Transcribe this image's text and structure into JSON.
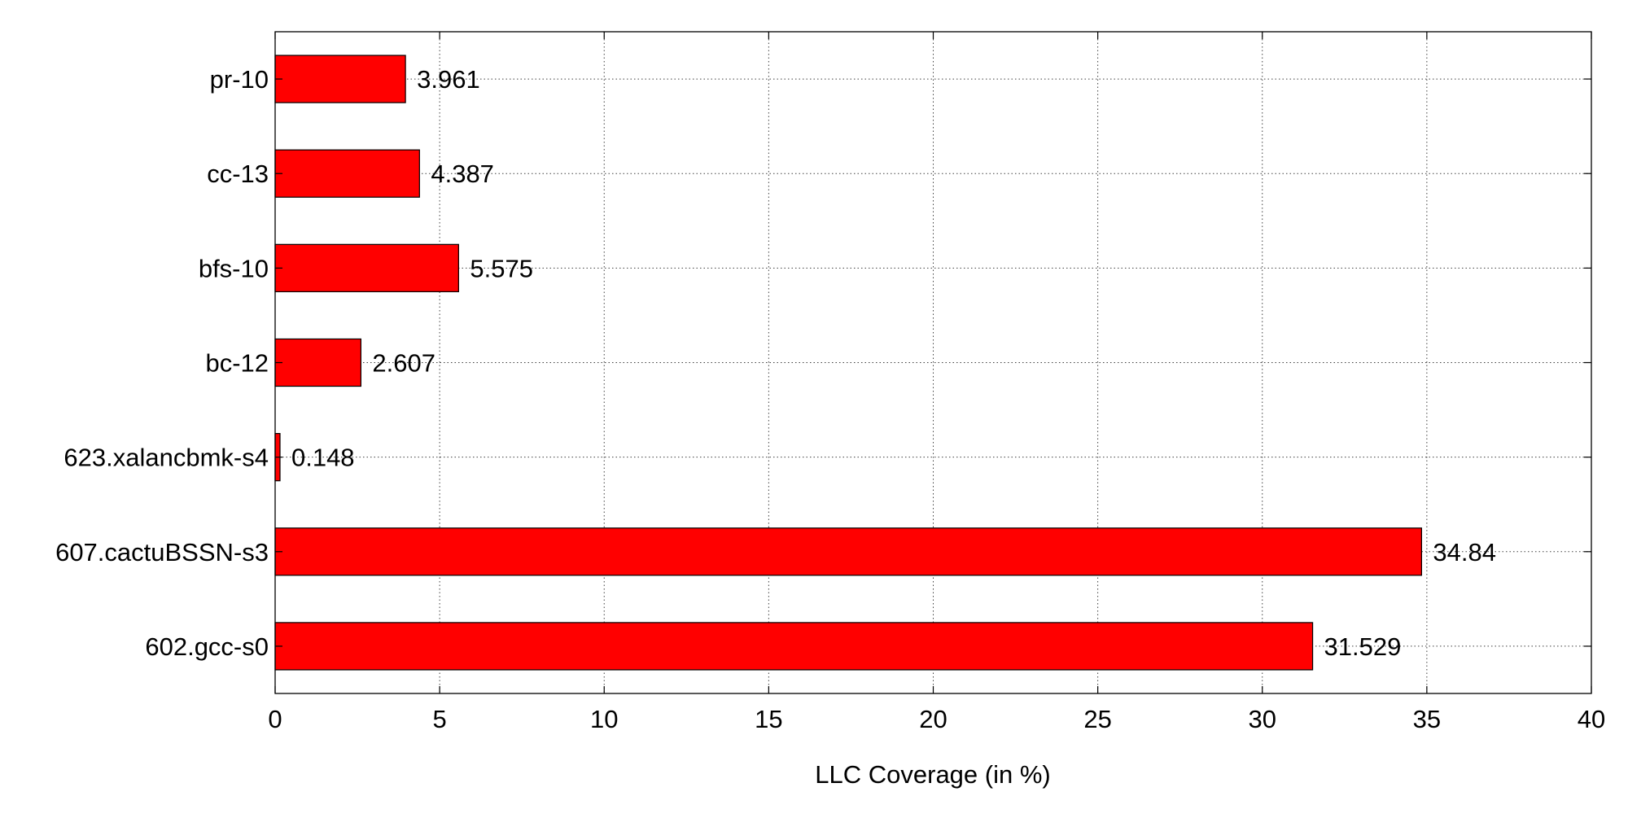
{
  "chart_data": {
    "type": "bar",
    "orientation": "horizontal",
    "categories": [
      "602.gcc-s0",
      "607.cactuBSSN-s3",
      "623.xalancbmk-s4",
      "bc-12",
      "bfs-10",
      "cc-13",
      "pr-10"
    ],
    "values": [
      31.529,
      34.84,
      0.148,
      2.607,
      5.575,
      4.387,
      3.961
    ],
    "value_labels": [
      "31.529",
      "34.84",
      "0.148",
      "2.607",
      "5.575",
      "4.387",
      "3.961"
    ],
    "title": "",
    "xlabel": "LLC Coverage (in %)",
    "ylabel": "",
    "xlim": [
      0,
      40
    ],
    "xticks": [
      0,
      5,
      10,
      15,
      20,
      25,
      30,
      35,
      40
    ],
    "grid": true,
    "bar_color": "#ff0000",
    "bar_edge_color": "#000000"
  }
}
